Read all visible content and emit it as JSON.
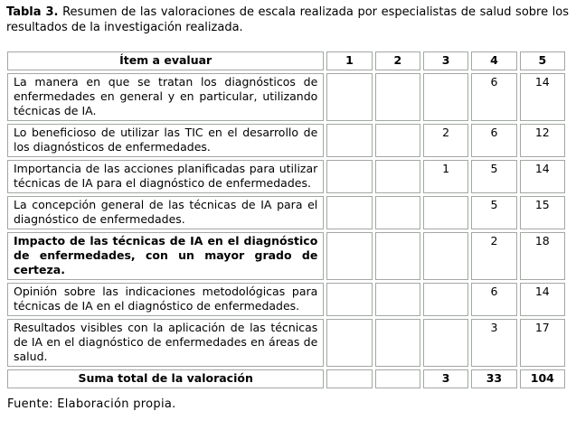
{
  "caption": {
    "label": "Tabla 3.",
    "text": "Resumen de las valoraciones de escala realizada por especialistas de salud sobre los resultados de la investigación realizada."
  },
  "table": {
    "header": {
      "item_label": "Ítem a evaluar",
      "scale": [
        "1",
        "2",
        "3",
        "4",
        "5"
      ]
    },
    "rows": [
      {
        "item": "La manera en que se tratan los diagnósticos de enfermedades en general y en particular, utilizando técnicas de IA.",
        "values": [
          "",
          "",
          "",
          "6",
          "14"
        ],
        "bold": false
      },
      {
        "item": "Lo beneficioso de utilizar las TIC en el desarrollo de los diagnósticos de enfermedades.",
        "values": [
          "",
          "",
          "2",
          "6",
          "12"
        ],
        "bold": false
      },
      {
        "item": "Importancia de las acciones planificadas para utilizar técnicas de IA para el diagnóstico de enfermedades.",
        "values": [
          "",
          "",
          "1",
          "5",
          "14"
        ],
        "bold": false
      },
      {
        "item": "La concepción general de las técnicas de IA para el diagnóstico de enfermedades.",
        "values": [
          "",
          "",
          "",
          "5",
          "15"
        ],
        "bold": false
      },
      {
        "item": "Impacto de las técnicas de IA en el diagnóstico de enfermedades, con un mayor grado de certeza.",
        "values": [
          "",
          "",
          "",
          "2",
          "18"
        ],
        "bold": true
      },
      {
        "item": "Opinión sobre las indicaciones metodológicas para técnicas de IA en el diagnóstico de enfermedades.",
        "values": [
          "",
          "",
          "",
          "6",
          "14"
        ],
        "bold": false
      },
      {
        "item": "Resultados visibles con la aplicación de las técnicas de IA en el diagnóstico de enfermedades en áreas de salud.",
        "values": [
          "",
          "",
          "",
          "3",
          "17"
        ],
        "bold": false
      }
    ],
    "total": {
      "label": "Suma total de la valoración",
      "values": [
        "",
        "",
        "3",
        "33",
        "104"
      ]
    }
  },
  "footer": {
    "source": "Fuente: Elaboración propia."
  },
  "colors": {
    "border": "#a2a8a2",
    "text": "#000000",
    "background": "#ffffff"
  }
}
